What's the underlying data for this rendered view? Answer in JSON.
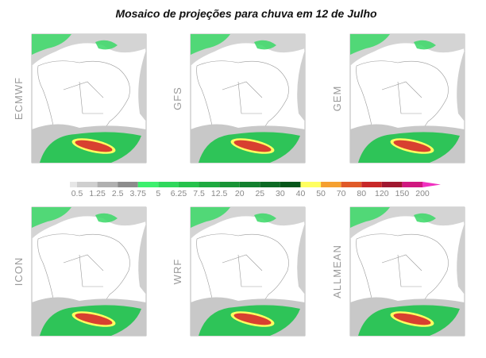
{
  "title": "Mosaico de projeções para chuva em 12 de Julho",
  "panels": [
    {
      "label": "ECMWF"
    },
    {
      "label": "GFS"
    },
    {
      "label": "GEM"
    },
    {
      "label": "ICON"
    },
    {
      "label": "WRF"
    },
    {
      "label": "ALLMEAN"
    }
  ],
  "colorbar": {
    "labels": [
      "0.5",
      "1.25",
      "2.5",
      "3.75",
      "5",
      "6.25",
      "7.5",
      "12.5",
      "20",
      "25",
      "30",
      "40",
      "50",
      "70",
      "80",
      "120",
      "150",
      "200"
    ],
    "colors": [
      "#e6e6e6",
      "#cfcfcf",
      "#b0b0b0",
      "#8c8c8c",
      "#3cf06e",
      "#2fd85c",
      "#25c24c",
      "#1eaa40",
      "#189436",
      "#12802e",
      "#0c6a24",
      "#06561a",
      "#ffff60",
      "#f5a030",
      "#e05a28",
      "#c82828",
      "#a01830",
      "#d01880",
      "#f030c0"
    ]
  }
}
